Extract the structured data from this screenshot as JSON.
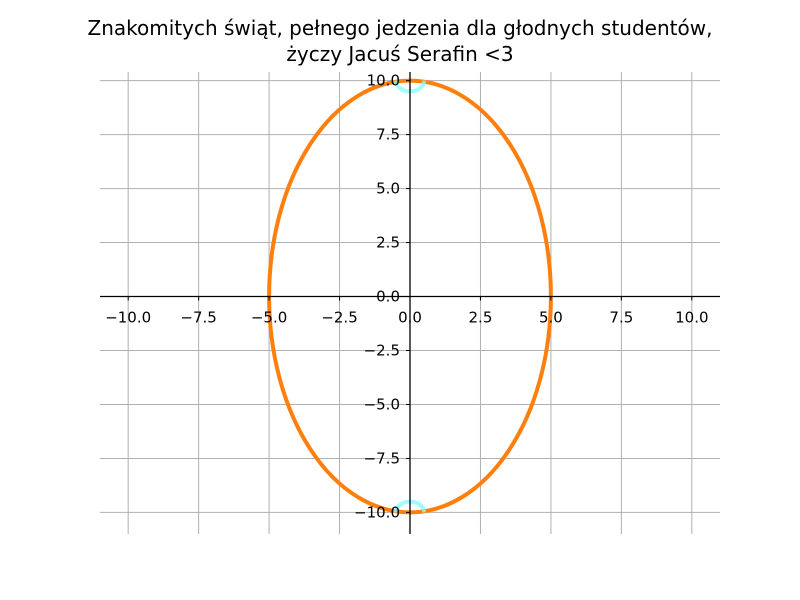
{
  "chart_data": {
    "type": "line",
    "title_lines": [
      "Znakomitych świąt, pełnego jedzenia dla głodnych studentów,",
      "życzy Jacuś Serafin <3"
    ],
    "xlabel": "",
    "ylabel": "",
    "xlim": [
      -11,
      11
    ],
    "ylim": [
      -11,
      10.4
    ],
    "xticks": [
      -10.0,
      -7.5,
      -5.0,
      -2.5,
      0.0,
      2.5,
      5.0,
      7.5,
      10.0
    ],
    "yticks": [
      -10.0,
      -7.5,
      -5.0,
      -2.5,
      0.0,
      2.5,
      5.0,
      7.5,
      10.0
    ],
    "grid": true,
    "axes_through_origin": true,
    "series": [
      {
        "shape": "ellipse",
        "center": [
          0,
          0
        ],
        "semi_axis_x": 5,
        "semi_axis_y": 10,
        "color": "#ff7f0e"
      },
      {
        "shape": "arc",
        "center": [
          0,
          10
        ],
        "radius": 0.5,
        "arc": "lower",
        "color": "#7fffff"
      },
      {
        "shape": "arc",
        "center": [
          0,
          -10
        ],
        "radius": 0.5,
        "arc": "upper",
        "color": "#7fffff"
      }
    ],
    "colors": {
      "grid": "#b0b0b0",
      "axes": "#000000"
    }
  }
}
